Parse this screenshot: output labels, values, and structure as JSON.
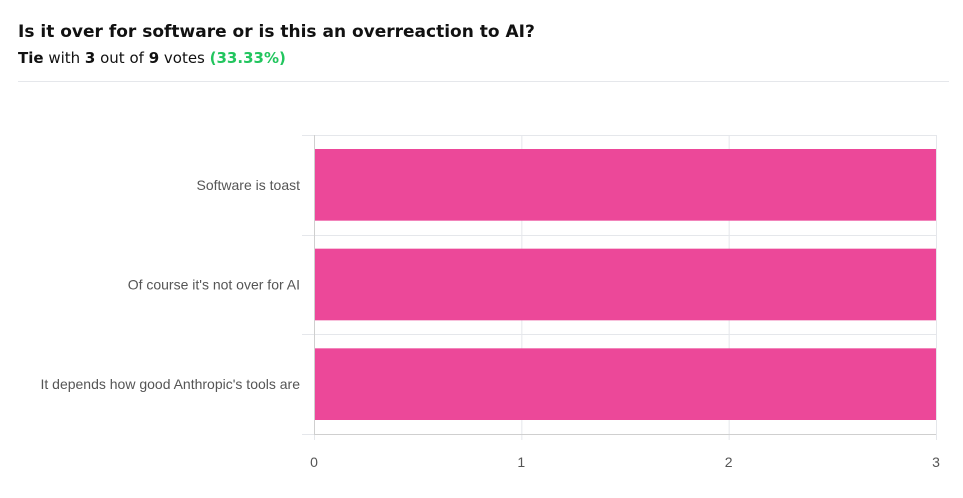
{
  "poll": {
    "title": "Is it over for software or is this an overreaction to AI?",
    "result_word": "Tie",
    "with_text": " with ",
    "winning_votes": "3",
    "out_of_text": " out of ",
    "total_votes": "9",
    "votes_text": " votes ",
    "percentage": "(33.33%)"
  },
  "colors": {
    "bar": "#ec4899",
    "grid": "#e5e7eb",
    "axis": "#cfcfcf",
    "label": "#555555",
    "percent": "#22c55e"
  },
  "chart_data": {
    "type": "bar",
    "orientation": "horizontal",
    "categories": [
      "Software is toast",
      "Of course it's not over for AI",
      "It depends how good Anthropic's tools are"
    ],
    "values": [
      3,
      3,
      3
    ],
    "xlim": [
      0,
      3
    ],
    "xticks": [
      "0",
      "1",
      "2",
      "3"
    ],
    "grid": true,
    "legend": "none",
    "title": "",
    "xlabel": "",
    "ylabel": ""
  }
}
